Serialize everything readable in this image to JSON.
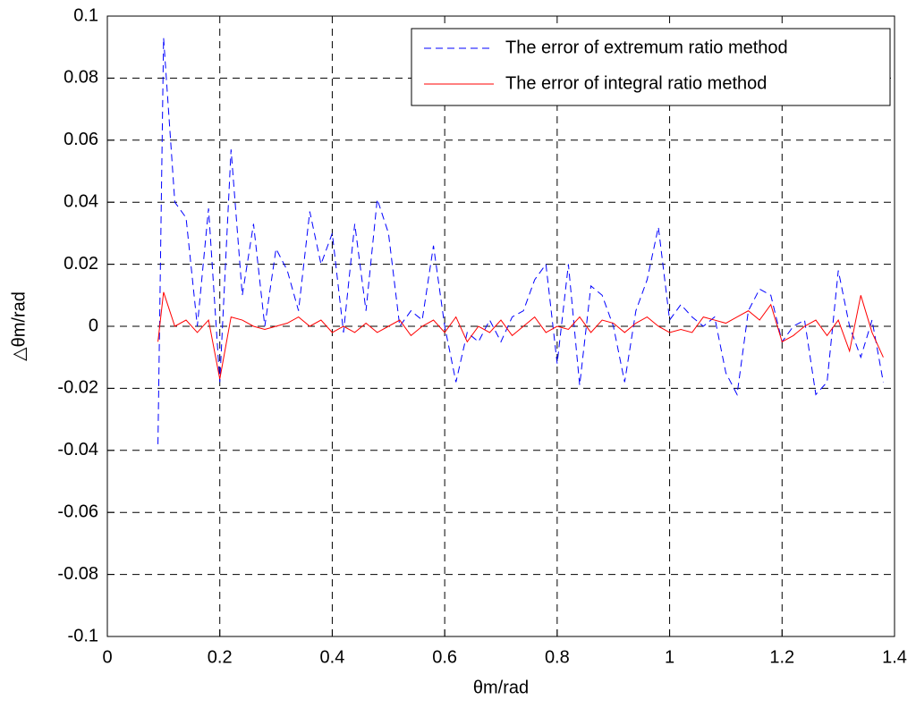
{
  "chart_data": {
    "type": "line",
    "xlabel": "θm/rad",
    "ylabel": "△θm/rad",
    "x": [
      0.09,
      0.1,
      0.12,
      0.14,
      0.16,
      0.18,
      0.2,
      0.22,
      0.24,
      0.26,
      0.28,
      0.3,
      0.32,
      0.34,
      0.36,
      0.38,
      0.4,
      0.42,
      0.44,
      0.46,
      0.48,
      0.5,
      0.52,
      0.54,
      0.56,
      0.58,
      0.6,
      0.62,
      0.64,
      0.66,
      0.68,
      0.7,
      0.72,
      0.74,
      0.76,
      0.78,
      0.8,
      0.82,
      0.84,
      0.86,
      0.88,
      0.9,
      0.92,
      0.94,
      0.96,
      0.98,
      1.0,
      1.02,
      1.04,
      1.06,
      1.08,
      1.1,
      1.12,
      1.14,
      1.16,
      1.18,
      1.2,
      1.22,
      1.24,
      1.26,
      1.28,
      1.3,
      1.32,
      1.34,
      1.36,
      1.38
    ],
    "series": [
      {
        "name": "The error of extremum ratio method",
        "color": "#0000ff",
        "line_style": "dashed",
        "values": [
          -0.038,
          0.093,
          0.04,
          0.035,
          0.0,
          0.038,
          -0.018,
          0.057,
          0.01,
          0.033,
          0.0,
          0.025,
          0.018,
          0.005,
          0.037,
          0.02,
          0.03,
          -0.002,
          0.033,
          0.005,
          0.041,
          0.03,
          0.0,
          0.005,
          0.002,
          0.026,
          0.0,
          -0.018,
          -0.002,
          -0.005,
          0.002,
          -0.005,
          0.003,
          0.005,
          0.015,
          0.02,
          -0.012,
          0.02,
          -0.019,
          0.013,
          0.01,
          0.0,
          -0.018,
          0.005,
          0.015,
          0.032,
          0.002,
          0.007,
          0.003,
          0.0,
          0.003,
          -0.015,
          -0.022,
          0.005,
          0.012,
          0.01,
          -0.005,
          0.0,
          0.002,
          -0.022,
          -0.018,
          0.018,
          0.0,
          -0.01,
          0.002,
          -0.018
        ]
      },
      {
        "name": "The error of integral ratio method",
        "color": "#ff0000",
        "line_style": "solid",
        "values": [
          -0.005,
          0.011,
          0.0,
          0.002,
          -0.002,
          0.002,
          -0.017,
          0.003,
          0.002,
          0.0,
          -0.001,
          0.0,
          0.001,
          0.003,
          0.0,
          0.002,
          -0.002,
          0.0,
          -0.002,
          0.001,
          -0.002,
          0.0,
          0.002,
          -0.003,
          0.0,
          0.002,
          -0.002,
          0.003,
          -0.005,
          0.0,
          -0.002,
          0.002,
          -0.003,
          0.0,
          0.003,
          -0.002,
          0.0,
          -0.001,
          0.003,
          -0.002,
          0.002,
          0.001,
          -0.002,
          0.001,
          0.003,
          0.0,
          -0.002,
          -0.001,
          -0.002,
          0.003,
          0.002,
          0.001,
          0.003,
          0.005,
          0.002,
          0.007,
          -0.005,
          -0.003,
          0.0,
          0.002,
          -0.003,
          0.002,
          -0.008,
          0.01,
          -0.002,
          -0.01
        ]
      }
    ],
    "xlim": [
      0,
      1.4
    ],
    "xticks": [
      0,
      0.2,
      0.4,
      0.6,
      0.8,
      1,
      1.2,
      1.4
    ],
    "ylim": [
      -0.1,
      0.1
    ],
    "yticks": [
      -0.1,
      -0.08,
      -0.06,
      -0.04,
      -0.02,
      0,
      0.02,
      0.04,
      0.06,
      0.08,
      0.1
    ],
    "grid": true,
    "legend": "upper right"
  }
}
